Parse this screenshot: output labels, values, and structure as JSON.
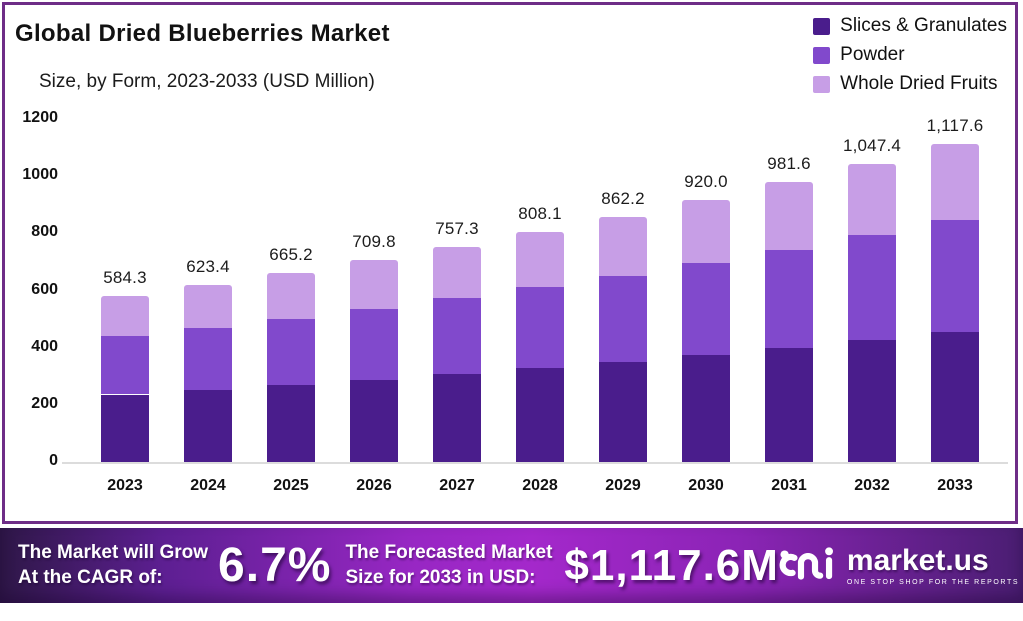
{
  "header": {
    "title": "Global Dried Blueberries Market",
    "subtitle": "Size, by Form, 2023-2033 (USD Million)"
  },
  "legend": [
    {
      "label": "Slices & Granulates",
      "color": "#4a1d8c"
    },
    {
      "label": "Powder",
      "color": "#8149cc"
    },
    {
      "label": "Whole Dried Fruits",
      "color": "#c79ee6"
    }
  ],
  "chart_data": {
    "type": "bar",
    "stacked": true,
    "title": "Global Dried Blueberries Market",
    "subtitle": "Size, by Form, 2023-2033 (USD Million)",
    "xlabel": "",
    "ylabel": "USD Million",
    "ylim": [
      0,
      1200
    ],
    "yticks": [
      0,
      200,
      400,
      600,
      800,
      1000,
      1200
    ],
    "grid": false,
    "legend_position": "top-right",
    "categories": [
      "2023",
      "2024",
      "2025",
      "2026",
      "2027",
      "2028",
      "2029",
      "2030",
      "2031",
      "2032",
      "2033"
    ],
    "series": [
      {
        "name": "Slices & Granulates",
        "color": "#4a1d8c",
        "values": [
          239.6,
          255.6,
          272.7,
          291.0,
          310.5,
          331.3,
          353.5,
          377.2,
          402.5,
          429.4,
          458.2
        ]
      },
      {
        "name": "Powder",
        "color": "#8149cc",
        "values": [
          204.5,
          218.2,
          232.8,
          248.4,
          265.1,
          282.8,
          301.8,
          322.0,
          343.6,
          366.6,
          391.2
        ]
      },
      {
        "name": "Whole Dried Fruits",
        "color": "#c79ee6",
        "values": [
          140.2,
          149.6,
          159.7,
          170.4,
          181.7,
          194.0,
          206.9,
          220.8,
          235.5,
          251.4,
          268.2
        ]
      }
    ],
    "totals": [
      584.3,
      623.4,
      665.2,
      709.8,
      757.3,
      808.1,
      862.2,
      920.0,
      981.6,
      1047.4,
      1117.6
    ],
    "total_labels": [
      "584.3",
      "623.4",
      "665.2",
      "709.8",
      "757.3",
      "808.1",
      "862.2",
      "920.0",
      "981.6",
      "1,047.4",
      "1,117.6"
    ]
  },
  "banner": {
    "cagr_label_line1": "The Market will Grow",
    "cagr_label_line2": "At the CAGR of:",
    "cagr_value": "6.7%",
    "forecast_label_line1": "The Forecasted Market",
    "forecast_label_line2": "Size for 2033 in USD:",
    "forecast_value": "$1,117.6M",
    "brand": {
      "name": "market.us",
      "tagline": "ONE STOP SHOP FOR THE REPORTS"
    }
  },
  "colors": {
    "card_border": "#6e2d87",
    "banner_gradient_mid": "#a428cb",
    "banner_gradient_edge": "#2e1747",
    "axis_line": "#dcdcdc",
    "text": "#111111"
  }
}
